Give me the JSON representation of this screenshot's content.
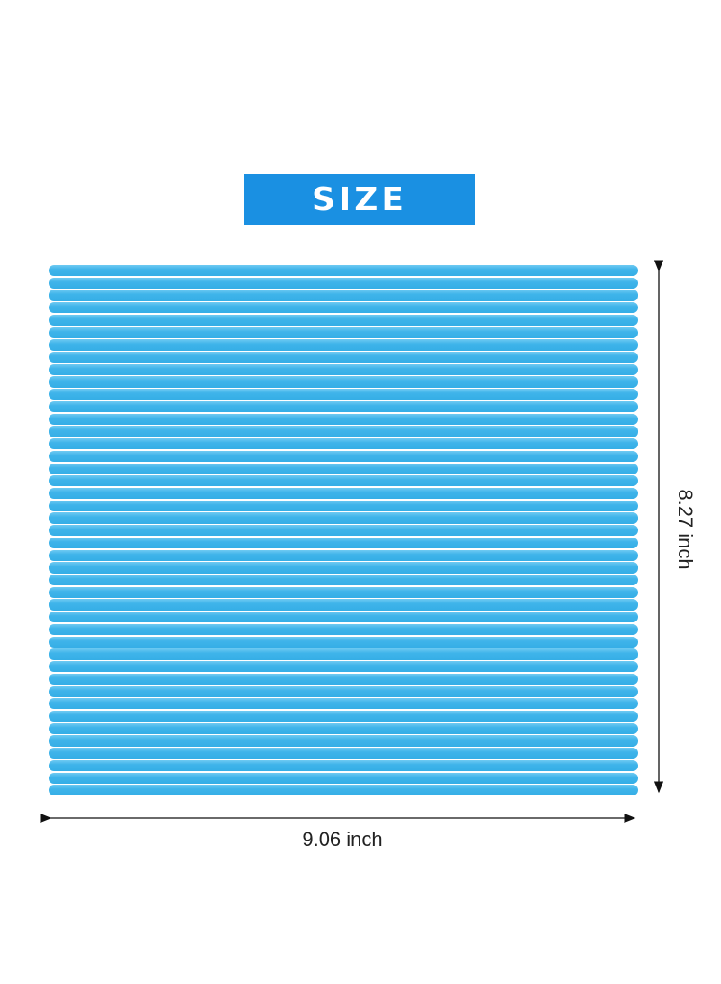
{
  "banner": {
    "label": "SIZE",
    "color": "#1a90e2"
  },
  "product": {
    "strip_color": "#3fb4ea"
  },
  "dimensions": {
    "width_label": "9.06 inch",
    "height_label": "8.27 inch"
  }
}
